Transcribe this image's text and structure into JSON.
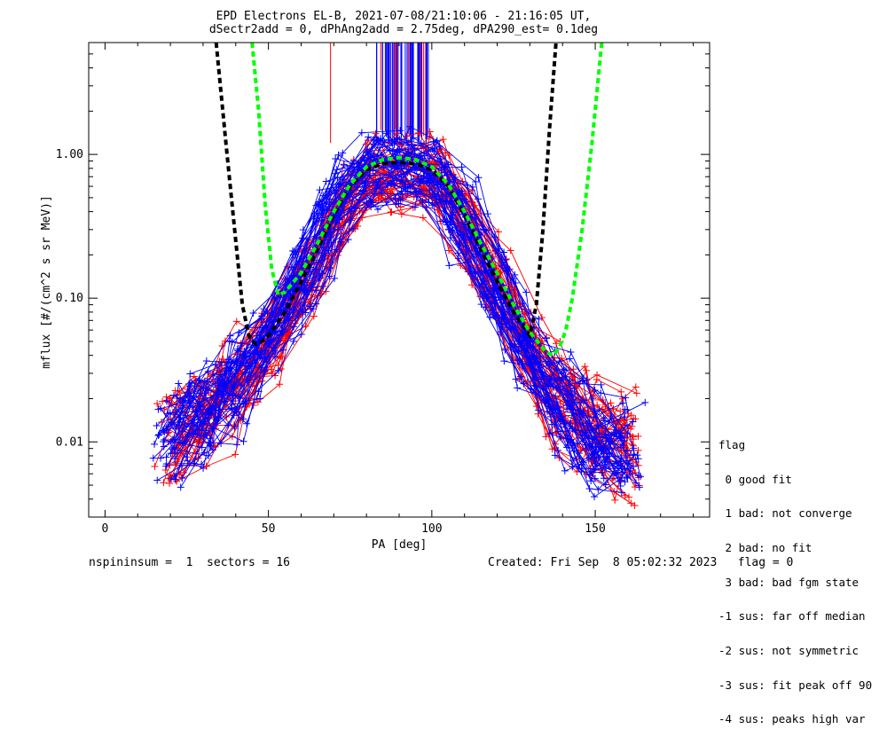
{
  "colors": {
    "blue": "#0000ff",
    "red": "#ff0000",
    "black": "#000000",
    "green": "#00ff00"
  },
  "chart_data": {
    "type": "line",
    "title": "EPD Electrons EL-B, 2021-07-08/21:10:06 - 21:16:05 UT,",
    "subtitle": "dSectr2add = 0, dPhAng2add = 2.75deg, dPA290_est=   0.1deg",
    "xlabel": "PA [deg]",
    "ylabel": "mflux [#/(cm^2 s sr MeV)]",
    "xlim": [
      -5,
      185
    ],
    "ylim": [
      0.003,
      6
    ],
    "y_scale": "log",
    "x_ticks": [
      0,
      50,
      100,
      150
    ],
    "x_tick_labels": [
      "0",
      "50",
      "100",
      "150"
    ],
    "y_ticks": [
      0.01,
      0.1,
      1.0
    ],
    "y_tick_labels": [
      "0.01",
      "0.10",
      "1.00"
    ],
    "series": [
      {
        "color": "blue",
        "line_style": "solid-with-plus-markers",
        "count": 45,
        "x": [
          20,
          25,
          30,
          35,
          40,
          45,
          50,
          55,
          60,
          65,
          70,
          75,
          80,
          85,
          90,
          95,
          100,
          105,
          110,
          115,
          120,
          125,
          130,
          135,
          140,
          145,
          150,
          155,
          160
        ],
        "y": [
          0.01,
          0.012,
          0.015,
          0.019,
          0.025,
          0.034,
          0.05,
          0.08,
          0.13,
          0.22,
          0.37,
          0.57,
          0.72,
          0.77,
          0.78,
          0.77,
          0.72,
          0.55,
          0.35,
          0.21,
          0.12,
          0.068,
          0.04,
          0.025,
          0.017,
          0.013,
          0.01,
          0.0085,
          0.0075
        ]
      },
      {
        "color": "red",
        "line_style": "solid-with-plus-markers",
        "count": 45,
        "x": [
          20,
          25,
          30,
          35,
          40,
          45,
          50,
          55,
          60,
          65,
          70,
          75,
          80,
          85,
          90,
          95,
          100,
          105,
          110,
          115,
          120,
          125,
          130,
          135,
          140,
          145,
          150,
          155,
          160
        ],
        "y": [
          0.011,
          0.013,
          0.016,
          0.02,
          0.026,
          0.036,
          0.052,
          0.082,
          0.13,
          0.21,
          0.35,
          0.55,
          0.7,
          0.76,
          0.77,
          0.76,
          0.7,
          0.53,
          0.34,
          0.21,
          0.12,
          0.07,
          0.042,
          0.027,
          0.019,
          0.015,
          0.012,
          0.01,
          0.009
        ]
      },
      {
        "color": "black",
        "line_style": "thick-dashed",
        "x": [
          34,
          37,
          40,
          42,
          44,
          46,
          48,
          50,
          55,
          60,
          65,
          70,
          75,
          80,
          85,
          90,
          95,
          100,
          105,
          110,
          115,
          120,
          125,
          130,
          132,
          134,
          136,
          138
        ],
        "y": [
          6.0,
          1.2,
          0.25,
          0.09,
          0.055,
          0.048,
          0.05,
          0.055,
          0.08,
          0.13,
          0.22,
          0.38,
          0.6,
          0.78,
          0.86,
          0.88,
          0.86,
          0.78,
          0.6,
          0.38,
          0.22,
          0.13,
          0.08,
          0.055,
          0.09,
          0.3,
          1.5,
          6.0
        ]
      },
      {
        "color": "green",
        "line_style": "thick-dashed",
        "x": [
          45,
          47,
          49,
          51,
          53,
          55,
          60,
          65,
          70,
          75,
          80,
          85,
          90,
          95,
          100,
          105,
          110,
          115,
          120,
          125,
          130,
          135,
          137,
          139,
          141,
          143,
          146,
          149,
          152
        ],
        "y": [
          6.0,
          2.0,
          0.45,
          0.16,
          0.105,
          0.11,
          0.15,
          0.24,
          0.4,
          0.62,
          0.82,
          0.92,
          0.95,
          0.92,
          0.82,
          0.62,
          0.4,
          0.24,
          0.15,
          0.09,
          0.058,
          0.042,
          0.04,
          0.045,
          0.06,
          0.1,
          0.3,
          1.2,
          6.0
        ]
      }
    ],
    "vertical_lines": {
      "blue": {
        "x_range": [
          83,
          99
        ],
        "y_from": 1.1,
        "y_to": 6
      },
      "red": [
        {
          "x": 69,
          "y_from": 1.2,
          "y_to": 6
        }
      ]
    },
    "legend_title": "flag",
    "legend": [
      " 0 good fit",
      " 1 bad: not converge",
      " 2 bad: no fit",
      " 3 bad: bad fgm state",
      "-1 sus: far off median",
      "-2 sus: not symmetric",
      "-3 sus: fit peak off 90",
      "-4 sus: peaks high var"
    ]
  },
  "footer": {
    "left": "nspininsum =  1  sectors = 16",
    "right": "Created: Fri Sep  8 05:02:32 2023   flag = 0"
  }
}
